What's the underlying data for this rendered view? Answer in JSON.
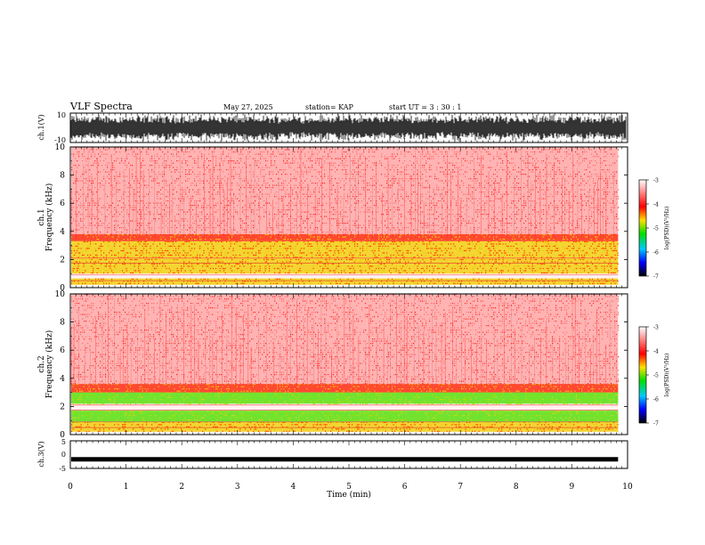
{
  "header": {
    "title": "VLF Spectra",
    "date": "May 27, 2025",
    "station": "station= KAP",
    "start": "start  UT =   3 : 30 : 1"
  },
  "colors": {
    "background": "#ffffff",
    "spec_low": "#ff4040",
    "spec_mid": "#f2d010",
    "spec_high": "#55e010"
  },
  "chart_data": [
    {
      "type": "line",
      "name": "ch1-waveform",
      "ylabel": "ch.1(V)",
      "ylim": [
        -10,
        10
      ],
      "yticklabels": [
        "10",
        "-10"
      ],
      "xlim": [
        0,
        10
      ]
    },
    {
      "type": "heatmap",
      "name": "ch1-spectrogram",
      "ylabel": "ch.1\nFrequency (kHz)",
      "ylim": [
        0,
        10
      ],
      "yticks": [
        0,
        2,
        4,
        6,
        8,
        10
      ],
      "xlim": [
        0,
        10
      ],
      "data_end_min": 9.83,
      "bands": [
        {
          "from_khz": 0.2,
          "to_khz": 0.65,
          "level": "mid"
        },
        {
          "from_khz": 1.0,
          "to_khz": 3.3,
          "level": "mid"
        },
        {
          "from_khz": 3.3,
          "to_khz": 3.8,
          "level": "mid-low"
        },
        {
          "from_khz": 3.8,
          "to_khz": 10.0,
          "level": "low"
        }
      ],
      "colorbar": {
        "label": "log(PSD)(V²/Hz)",
        "ticks": [
          "-3",
          "-4",
          "-5",
          "-6",
          "-7"
        ],
        "range": [
          -7,
          -3
        ]
      }
    },
    {
      "type": "heatmap",
      "name": "ch2-spectrogram",
      "ylabel": "ch.2\nFrequency (kHz)",
      "ylim": [
        0,
        10
      ],
      "yticks": [
        0,
        2,
        4,
        6,
        8,
        10
      ],
      "xlim": [
        0,
        10
      ],
      "data_end_min": 9.83,
      "bands": [
        {
          "from_khz": 0.2,
          "to_khz": 0.9,
          "level": "mid"
        },
        {
          "from_khz": 0.9,
          "to_khz": 1.7,
          "level": "high"
        },
        {
          "from_khz": 2.2,
          "to_khz": 3.0,
          "level": "high"
        },
        {
          "from_khz": 3.0,
          "to_khz": 3.6,
          "level": "mid-low"
        },
        {
          "from_khz": 3.6,
          "to_khz": 10.0,
          "level": "low"
        }
      ],
      "colorbar": {
        "label": "log(PSD)(V²/Hz)",
        "ticks": [
          "-3",
          "-4",
          "-5",
          "-6",
          "-7"
        ],
        "range": [
          -7,
          -3
        ]
      }
    },
    {
      "type": "line",
      "name": "ch3-waveform",
      "ylabel": "ch.3(V)",
      "ylim": [
        -5,
        5
      ],
      "yticklabels": [
        "5",
        "0",
        "-5"
      ],
      "xlim": [
        0,
        10
      ]
    }
  ],
  "xaxis": {
    "label": "Time (min)",
    "ticks": [
      "0",
      "1",
      "2",
      "3",
      "4",
      "5",
      "6",
      "7",
      "8",
      "9",
      "10"
    ]
  }
}
